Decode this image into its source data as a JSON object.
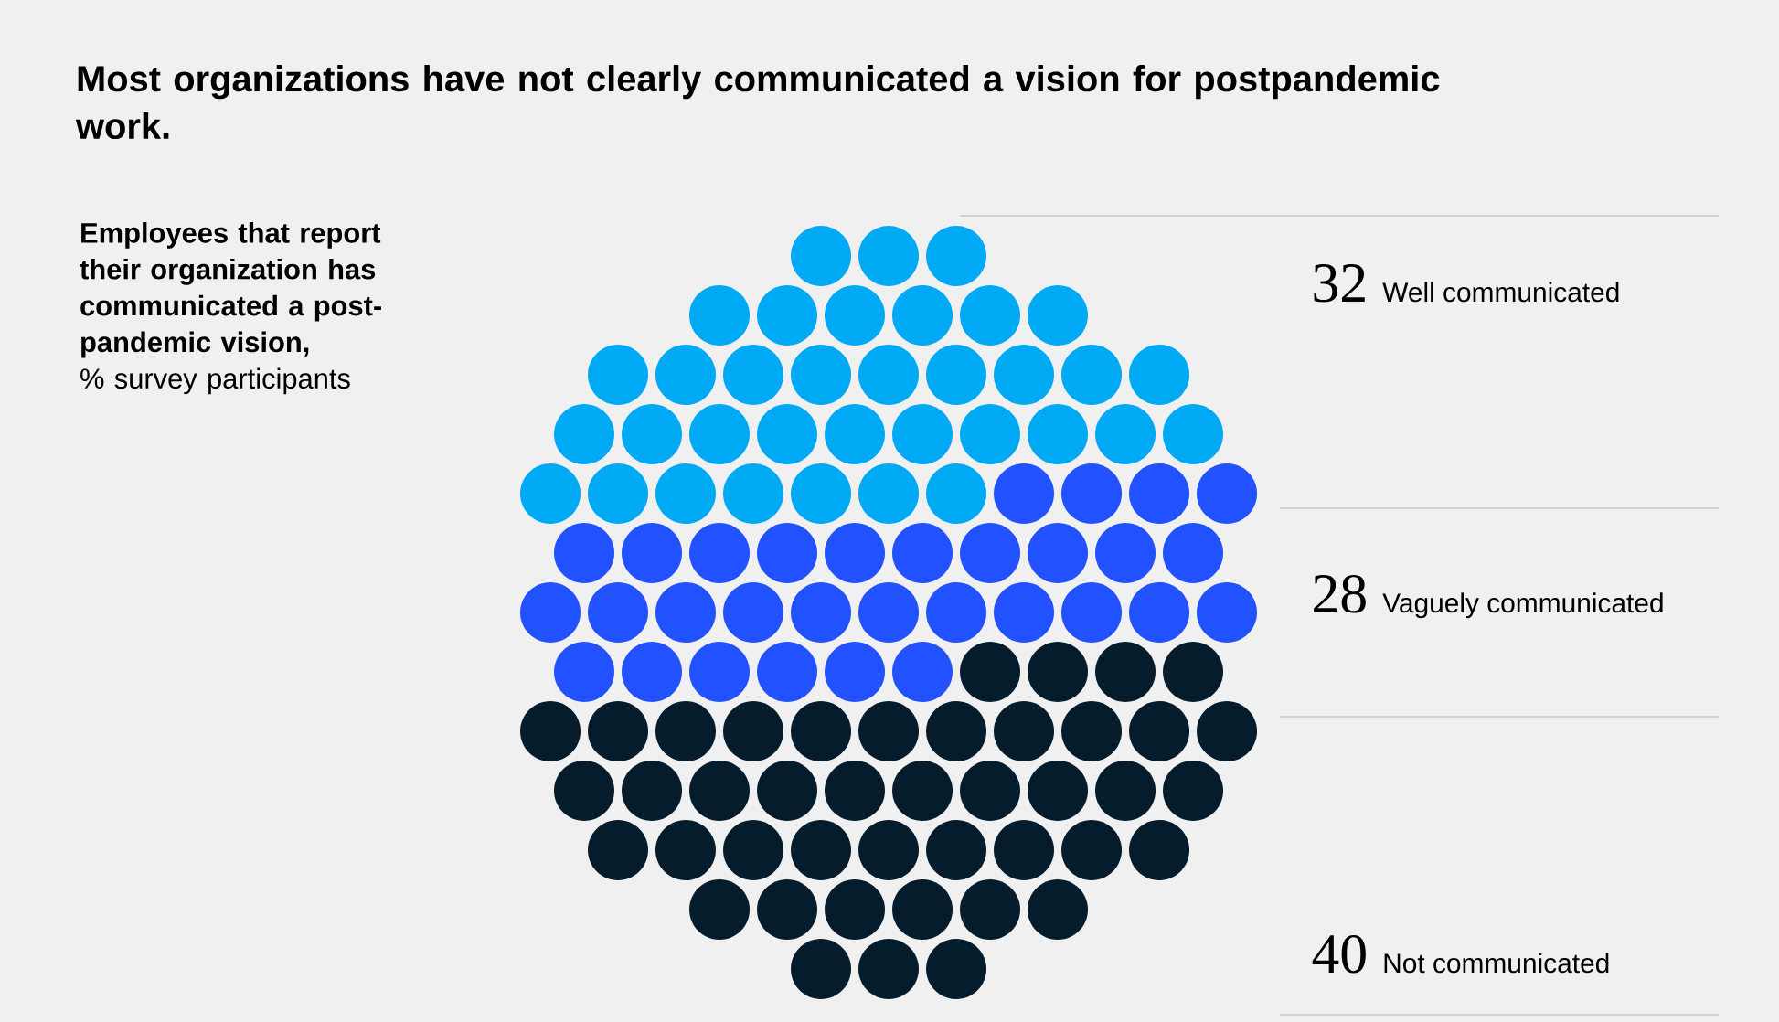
{
  "chart_data": {
    "type": "other",
    "title": "Most organizations have not clearly communicated a vision for postpandemic work.",
    "subtitle": "Employees that report their organization has communicated a post-pandemic vision,",
    "ylabel": "% survey participants",
    "categories": [
      "Well communicated",
      "Vaguely communicated",
      "Not communicated"
    ],
    "values": [
      32,
      28,
      40
    ],
    "colors": [
      "#00a9f4",
      "#2251ff",
      "#051c2c"
    ],
    "data_labels": true
  }
}
